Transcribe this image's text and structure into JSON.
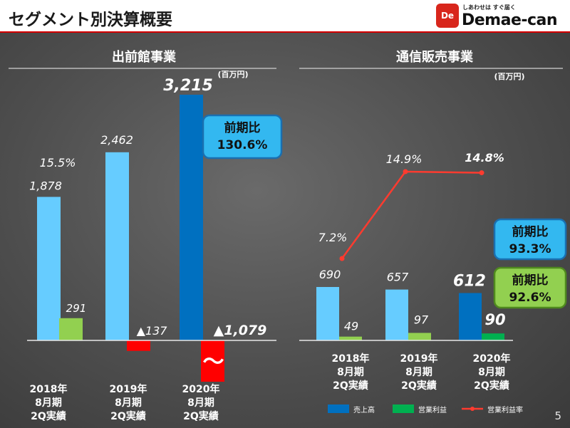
{
  "page": {
    "title": "セグメント別決算概要",
    "number": "5"
  },
  "logo": {
    "name": "Demae-can",
    "tagline": "しあわせは すぐ届く",
    "mark": "De"
  },
  "chart_data": [
    {
      "type": "bar",
      "title": "出前館事業",
      "unit_label": "(百万円)",
      "categories": [
        "2018年\n8月期\n2Q実績",
        "2019年\n8月期\n2Q実績",
        "2020年\n8月期\n2Q実績"
      ],
      "series": [
        {
          "name": "売上高",
          "values": [
            1878,
            2462,
            3215
          ],
          "labels": [
            "1,878",
            "2,462",
            "3,215"
          ]
        },
        {
          "name": "営業利益",
          "values": [
            291,
            -137,
            -1079
          ],
          "labels": [
            "291",
            "▲137",
            "▲1,079"
          ]
        }
      ],
      "line": {
        "name": "営業利益率",
        "labels": [
          "15.5%",
          "",
          ""
        ]
      },
      "callouts": [
        {
          "text": [
            "前期比",
            "130.6%"
          ],
          "color": "blue"
        }
      ],
      "axis_break": "〜",
      "colors": {
        "sales_prior": "#66ccff",
        "sales_current": "#0070c0",
        "profit_positive": "#92d050",
        "profit_negative": "#ff0000"
      }
    },
    {
      "type": "bar",
      "title": "通信販売事業",
      "unit_label": "(百万円)",
      "categories": [
        "2018年\n8月期\n2Q実績",
        "2019年\n8月期\n2Q実績",
        "2020年\n8月期\n2Q実績"
      ],
      "series": [
        {
          "name": "売上高",
          "values": [
            690,
            657,
            612
          ],
          "labels": [
            "690",
            "657",
            "612"
          ]
        },
        {
          "name": "営業利益",
          "values": [
            49,
            97,
            90
          ],
          "labels": [
            "49",
            "97",
            "90"
          ]
        }
      ],
      "line": {
        "name": "営業利益率",
        "values": [
          7.2,
          14.9,
          14.8
        ],
        "labels": [
          "7.2%",
          "14.9%",
          "14.8%"
        ]
      },
      "callouts": [
        {
          "text": [
            "前期比",
            "93.3%"
          ],
          "color": "blue"
        },
        {
          "text": [
            "前期比",
            "92.6%"
          ],
          "color": "green"
        }
      ],
      "colors": {
        "sales_prior": "#66ccff",
        "sales_current": "#0070c0",
        "profit_prior": "#92d050",
        "profit_current": "#00b050",
        "line": "#ff3b2f"
      }
    }
  ],
  "legend": [
    {
      "label": "売上高",
      "color": "#0070c0",
      "kind": "box"
    },
    {
      "label": "営業利益",
      "color": "#00b050",
      "kind": "box"
    },
    {
      "label": "営業利益率",
      "color": "#ff3b2f",
      "kind": "line"
    }
  ]
}
